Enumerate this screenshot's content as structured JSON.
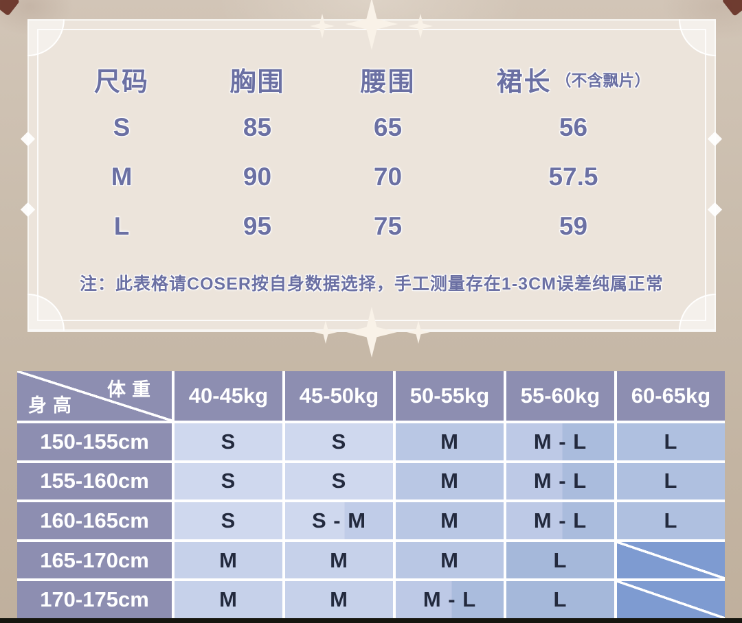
{
  "colors": {
    "page_bg": "#c9bbab",
    "card_bg": "#ece4db",
    "accent_text": "#6b70a3",
    "header_bg": "#8d8eb1",
    "cell_text": "#232a3e",
    "tone_s": "#cfd8ee",
    "tone_m": "#b9c7e4",
    "tone_m_light": "#c6d1ea",
    "tone_l": "#afc0e0",
    "tone_l_dark": "#a5b8da",
    "tone_na": "#7e9bd1",
    "tone_sm_right": "#c0cce8",
    "tone_ml_left": "#bdc9e6",
    "tone_ml_right": "#aabcdd"
  },
  "size_card": {
    "headers": {
      "size": "尺码",
      "bust": "胸围",
      "waist": "腰围",
      "skirt": "裙长",
      "skirt_note": "（不含飘片）"
    },
    "rows": [
      {
        "size": "S",
        "bust": "85",
        "waist": "65",
        "skirt": "56"
      },
      {
        "size": "M",
        "bust": "90",
        "waist": "70",
        "skirt": "57.5"
      },
      {
        "size": "L",
        "bust": "95",
        "waist": "75",
        "skirt": "59"
      }
    ],
    "note": "注：此表格请COSER按自身数据选择，手工测量存在1-3CM误差纯属正常"
  },
  "matrix": {
    "corner": {
      "weight": "体重",
      "height": "身高"
    },
    "weight_columns": [
      "40-45kg",
      "45-50kg",
      "50-55kg",
      "55-60kg",
      "60-65kg"
    ],
    "rows": [
      {
        "height": "150-155cm",
        "cells": [
          {
            "label": "S",
            "tone": "s"
          },
          {
            "label": "S",
            "tone": "s"
          },
          {
            "label": "M",
            "tone": "m"
          },
          {
            "label": "M - L",
            "tone": "ml"
          },
          {
            "label": "L",
            "tone": "l"
          }
        ]
      },
      {
        "height": "155-160cm",
        "cells": [
          {
            "label": "S",
            "tone": "s"
          },
          {
            "label": "S",
            "tone": "s"
          },
          {
            "label": "M",
            "tone": "m"
          },
          {
            "label": "M - L",
            "tone": "ml"
          },
          {
            "label": "L",
            "tone": "l"
          }
        ]
      },
      {
        "height": "160-165cm",
        "cells": [
          {
            "label": "S",
            "tone": "s"
          },
          {
            "label": "S - M",
            "tone": "sm"
          },
          {
            "label": "M",
            "tone": "m"
          },
          {
            "label": "M - L",
            "tone": "ml"
          },
          {
            "label": "L",
            "tone": "l"
          }
        ]
      },
      {
        "height": "165-170cm",
        "cells": [
          {
            "label": "M",
            "tone": "m_light"
          },
          {
            "label": "M",
            "tone": "m_light"
          },
          {
            "label": "M",
            "tone": "m"
          },
          {
            "label": "L",
            "tone": "l_dark"
          },
          {
            "label": "",
            "tone": "na"
          }
        ]
      },
      {
        "height": "170-175cm",
        "cells": [
          {
            "label": "M",
            "tone": "m_light"
          },
          {
            "label": "M",
            "tone": "m_light"
          },
          {
            "label": "M - L",
            "tone": "ml"
          },
          {
            "label": "L",
            "tone": "l_dark"
          },
          {
            "label": "",
            "tone": "na"
          }
        ]
      }
    ]
  }
}
